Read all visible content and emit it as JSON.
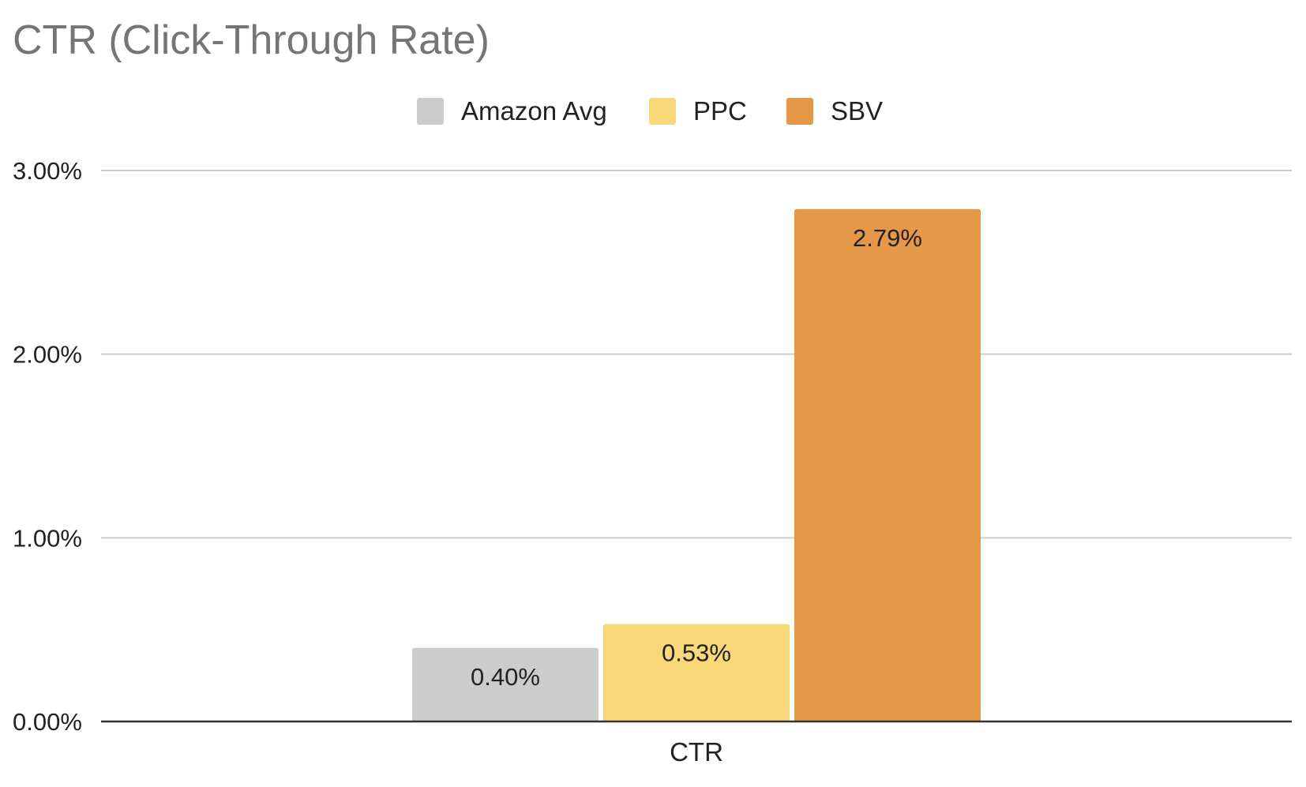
{
  "chart_data": {
    "type": "bar",
    "title": "CTR (Click-Through Rate)",
    "categories": [
      "CTR"
    ],
    "series": [
      {
        "name": "Amazon Avg",
        "values": [
          0.4
        ],
        "color": "#cccccc",
        "label": "0.40%"
      },
      {
        "name": "PPC",
        "values": [
          0.53
        ],
        "color": "#f9d87a",
        "label": "0.53%"
      },
      {
        "name": "SBV",
        "values": [
          2.79
        ],
        "color": "#e69849",
        "label": "2.79%"
      }
    ],
    "xlabel": "",
    "ylabel": "",
    "ylim": [
      0,
      3
    ],
    "yticks": [
      {
        "value": 0,
        "label": "0.00%"
      },
      {
        "value": 1,
        "label": "1.00%"
      },
      {
        "value": 2,
        "label": "2.00%"
      },
      {
        "value": 3,
        "label": "3.00%"
      }
    ],
    "grid": true,
    "legend_position": "top-center"
  },
  "colors": {
    "title": "#757575",
    "gridline": "#cccccc",
    "baseline": "#333333",
    "text": "#222222"
  }
}
